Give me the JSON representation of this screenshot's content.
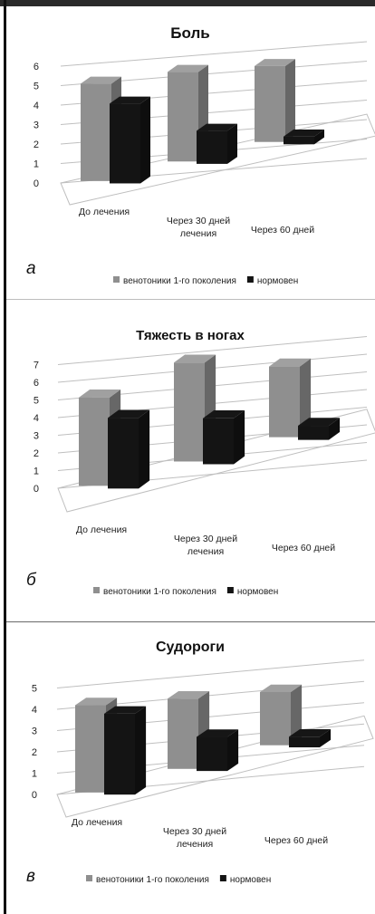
{
  "colors": {
    "venotonics": "#8f8f8f",
    "normoven": "#141414",
    "grid": "#bfbfbf",
    "text": "#222222"
  },
  "chart_data": [
    {
      "type": "bar",
      "panel_letter": "а",
      "title": "Боль",
      "categories": [
        [
          "До лечения"
        ],
        [
          "Через 30 дней",
          "лечения"
        ],
        [
          "Через 60 дней"
        ]
      ],
      "yticks": [
        "0",
        "1",
        "2",
        "3",
        "4",
        "5",
        "6"
      ],
      "ylim": [
        0,
        6
      ],
      "series": [
        {
          "name": "венотоники  1-го поколения",
          "values": [
            5.0,
            4.6,
            3.9
          ],
          "color": "#8f8f8f"
        },
        {
          "name": "нормовен",
          "values": [
            4.1,
            1.7,
            0.4
          ],
          "color": "#141414"
        }
      ]
    },
    {
      "type": "bar",
      "panel_letter": "б",
      "title": "Тяжесть в ногах",
      "categories": [
        [
          "До лечения"
        ],
        [
          "Через 30 дней",
          "лечения"
        ],
        [
          "Через 60 дней"
        ]
      ],
      "yticks": [
        "0",
        "1",
        "2",
        "3",
        "4",
        "5",
        "6",
        "7"
      ],
      "ylim": [
        0,
        7
      ],
      "series": [
        {
          "name": "венотоники   1-го поколения",
          "values": [
            5.0,
            5.6,
            4.0
          ],
          "color": "#8f8f8f"
        },
        {
          "name": "нормовен",
          "values": [
            4.0,
            2.6,
            0.8
          ],
          "color": "#141414"
        }
      ]
    },
    {
      "type": "bar",
      "panel_letter": "в",
      "title": "Судороги",
      "categories": [
        [
          "До лечения"
        ],
        [
          "Через 30 дней",
          "лечения"
        ],
        [
          "Через 60 дней"
        ]
      ],
      "yticks": [
        "0",
        "1",
        "2",
        "3",
        "4",
        "5"
      ],
      "ylim": [
        0,
        5
      ],
      "series": [
        {
          "name": "венотоники  1-го поколения",
          "values": [
            4.1,
            3.3,
            2.5
          ],
          "color": "#8f8f8f"
        },
        {
          "name": "нормовен",
          "values": [
            3.8,
            1.6,
            0.5
          ],
          "color": "#141414"
        }
      ]
    }
  ]
}
